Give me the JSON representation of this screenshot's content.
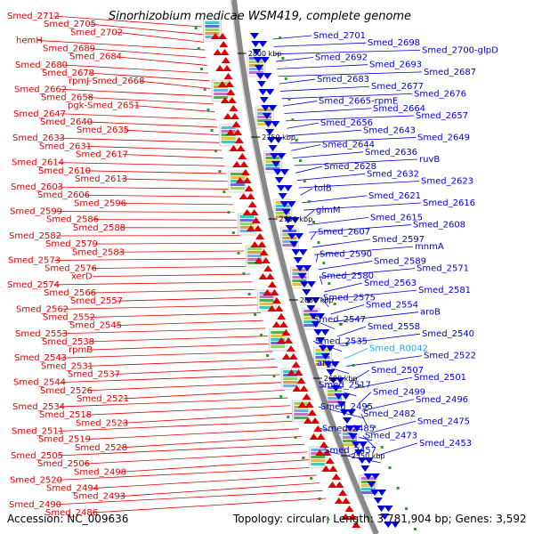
{
  "title": "Sinorhizobium medicae WSM419, complete genome",
  "accession_text": "Accession: NC_009636",
  "topology_text": "Topology: circular; Length: 3,781,904 bp; Genes: 3,592",
  "colors": {
    "forward_strand": "#e00000",
    "reverse_strand": "#0000d8",
    "rna": "#22aadd",
    "backbone": "#888888"
  },
  "kbp_marks": [
    "2800 kbp",
    "2750 kbp",
    "2700 kbp",
    "2650 kbp",
    "2600 kbp",
    "2550 kbp"
  ],
  "left_labels": [
    "Smed_2712",
    "Smed_2705",
    "Smed_2702",
    "hemH",
    "Smed_2689",
    "Smed_2684",
    "Smed_2680",
    "Smed_2678",
    "rpmJ-Smed_2668",
    "Smed_2662",
    "Smed_2658",
    "pgk-Smed_2651",
    "Smed_2647",
    "Smed_2640",
    "Smed_2635",
    "Smed_2633",
    "Smed_2631",
    "Smed_2617",
    "Smed_2614",
    "Smed_2610",
    "Smed_2613",
    "Smed_2603",
    "Smed_2606",
    "Smed_2596",
    "Smed_2599",
    "Smed_2586",
    "Smed_2588",
    "Smed_2582",
    "Smed_2579",
    "Smed_2583",
    "Smed_2573",
    "Smed_2576",
    "xerD",
    "Smed_2574",
    "Smed_2566",
    "Smed_2557",
    "Smed_2562",
    "Smed_2552",
    "Smed_2545",
    "Smed_2553",
    "Smed_2538",
    "rpmB",
    "Smed_2543",
    "Smed_2531",
    "Smed_2537",
    "Smed_2544",
    "Smed_2526",
    "Smed_2521",
    "Smed_2534",
    "Smed_2518",
    "Smed_2523",
    "Smed_2511",
    "Smed_2519",
    "Smed_2528",
    "Smed_2505",
    "Smed_2506",
    "Smed_2498",
    "Smed_2520",
    "Smed_2494",
    "Smed_2493",
    "Smed_2490",
    "Smed_2486"
  ],
  "right_labels": [
    "Smed_2701",
    "Smed_2698",
    "Smed_2700-glpD",
    "Smed_2692",
    "Smed_2693",
    "Smed_2687",
    "Smed_2683",
    "Smed_2677",
    "Smed_2676",
    "Smed_2665-rpmE",
    "Smed_2664",
    "Smed_2657",
    "Smed_2656",
    "Smed_2643",
    "Smed_2649",
    "Smed_2644",
    "Smed_2636",
    "ruvB",
    "Smed_2628",
    "Smed_2632",
    "Smed_2623",
    "tolB",
    "Smed_2621",
    "Smed_2616",
    "glmM",
    "Smed_2615",
    "Smed_2608",
    "Smed_2607",
    "Smed_2597",
    "mnmA",
    "Smed_2590",
    "Smed_2589",
    "Smed_2571",
    "Smed_2580",
    "Smed_2563",
    "Smed_2581",
    "Smed_2575",
    "Smed_2554",
    "aroB",
    "Smed_2547",
    "Smed_2558",
    "Smed_2540",
    "Smed_2535",
    "Smed_R0042",
    "Smed_2522",
    "argI",
    "Smed_2507",
    "Smed_2501",
    "Smed_2517",
    "Smed_2499",
    "Smed_2496",
    "Smed_2495",
    "Smed_2482",
    "Smed_2475",
    "Smed_2485",
    "Smed_2473",
    "Smed_2453",
    "Smed_2457"
  ]
}
